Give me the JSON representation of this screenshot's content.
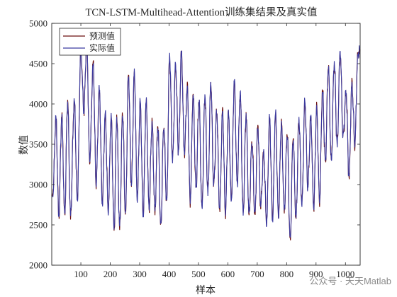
{
  "chart_data": {
    "type": "line",
    "title": "TCN-LSTM-Multihead-Attention训练集结果及真实值",
    "xlabel": "样本",
    "ylabel": "数值",
    "xlim": [
      1,
      1050
    ],
    "ylim": [
      2000,
      5000
    ],
    "x_ticks": [
      100,
      200,
      300,
      400,
      500,
      600,
      700,
      800,
      900,
      1000
    ],
    "y_ticks": [
      2000,
      2500,
      3000,
      3500,
      4000,
      4500,
      5000
    ],
    "grid": false,
    "legend_position": "top-left",
    "series": [
      {
        "name": "预测值",
        "color": "#6b0f0f"
      },
      {
        "name": "实际值",
        "color": "#3a3aa0"
      }
    ],
    "approx_peaks": [
      [
        5,
        2850
      ],
      [
        15,
        3850
      ],
      [
        25,
        2600
      ],
      [
        35,
        3850
      ],
      [
        45,
        2650
      ],
      [
        55,
        4000
      ],
      [
        65,
        2650
      ],
      [
        78,
        4050
      ],
      [
        88,
        2800
      ],
      [
        100,
        4700
      ],
      [
        110,
        3900
      ],
      [
        120,
        4800
      ],
      [
        130,
        3300
      ],
      [
        142,
        4500
      ],
      [
        152,
        3000
      ],
      [
        163,
        4200
      ],
      [
        173,
        2750
      ],
      [
        183,
        3900
      ],
      [
        193,
        2650
      ],
      [
        203,
        3850
      ],
      [
        213,
        2450
      ],
      [
        222,
        3800
      ],
      [
        232,
        2500
      ],
      [
        242,
        3850
      ],
      [
        252,
        2650
      ],
      [
        262,
        4350
      ],
      [
        272,
        3000
      ],
      [
        282,
        4400
      ],
      [
        292,
        2800
      ],
      [
        302,
        4050
      ],
      [
        312,
        2600
      ],
      [
        322,
        4050
      ],
      [
        332,
        2700
      ],
      [
        342,
        3750
      ],
      [
        352,
        2700
      ],
      [
        362,
        3700
      ],
      [
        372,
        2500
      ],
      [
        382,
        3700
      ],
      [
        392,
        2800
      ],
      [
        402,
        4600
      ],
      [
        412,
        3300
      ],
      [
        422,
        4500
      ],
      [
        432,
        3400
      ],
      [
        442,
        4650
      ],
      [
        452,
        3400
      ],
      [
        462,
        4200
      ],
      [
        472,
        2800
      ],
      [
        482,
        4100
      ],
      [
        492,
        2950
      ],
      [
        502,
        4050
      ],
      [
        512,
        2700
      ],
      [
        522,
        4100
      ],
      [
        532,
        2900
      ],
      [
        542,
        4250
      ],
      [
        552,
        3000
      ],
      [
        562,
        3900
      ],
      [
        572,
        2700
      ],
      [
        582,
        3900
      ],
      [
        592,
        2650
      ],
      [
        602,
        3900
      ],
      [
        612,
        2800
      ],
      [
        622,
        4300
      ],
      [
        632,
        3000
      ],
      [
        642,
        4150
      ],
      [
        652,
        2650
      ],
      [
        662,
        3850
      ],
      [
        672,
        2650
      ],
      [
        682,
        3500
      ],
      [
        692,
        2650
      ],
      [
        702,
        3700
      ],
      [
        712,
        2750
      ],
      [
        722,
        3400
      ],
      [
        732,
        2500
      ],
      [
        742,
        3850
      ],
      [
        752,
        2550
      ],
      [
        762,
        3900
      ],
      [
        772,
        2600
      ],
      [
        782,
        3750
      ],
      [
        792,
        2700
      ],
      [
        802,
        3600
      ],
      [
        812,
        2330
      ],
      [
        822,
        3550
      ],
      [
        832,
        2600
      ],
      [
        842,
        3800
      ],
      [
        852,
        2750
      ],
      [
        862,
        4050
      ],
      [
        872,
        2950
      ],
      [
        882,
        3850
      ],
      [
        892,
        2700
      ],
      [
        902,
        3950
      ],
      [
        912,
        2800
      ],
      [
        922,
        4150
      ],
      [
        932,
        3300
      ],
      [
        942,
        4450
      ],
      [
        952,
        3300
      ],
      [
        962,
        4500
      ],
      [
        972,
        3500
      ],
      [
        982,
        4650
      ],
      [
        992,
        3600
      ],
      [
        1002,
        4150
      ],
      [
        1012,
        3100
      ],
      [
        1022,
        4250
      ],
      [
        1032,
        3500
      ],
      [
        1042,
        4600
      ],
      [
        1048,
        4700
      ]
    ]
  },
  "watermark": {
    "text": "公众号 · 天天Matlab"
  }
}
